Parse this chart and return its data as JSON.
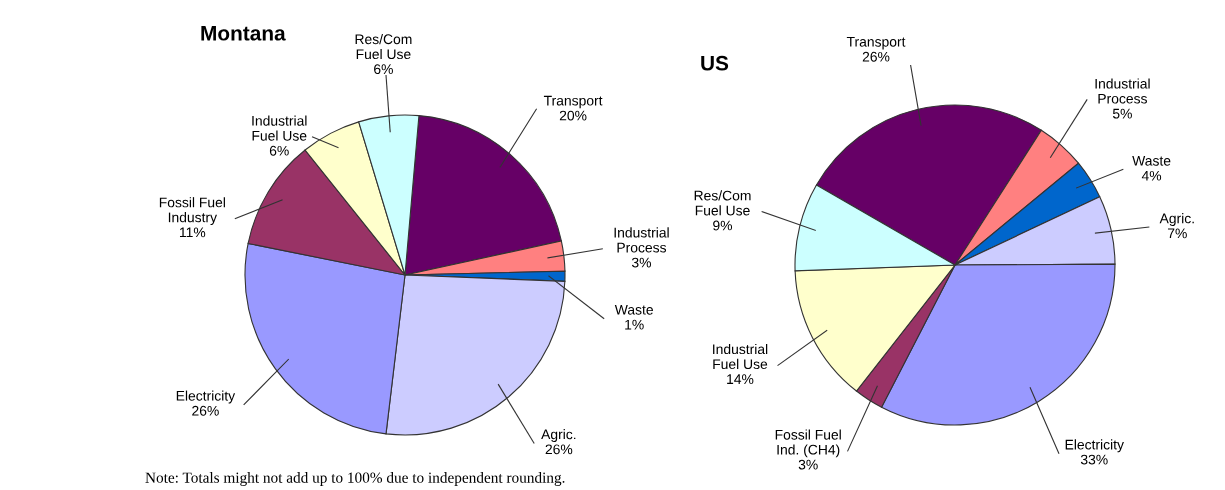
{
  "chart_data": [
    {
      "type": "pie",
      "title": "Montana",
      "categories": [
        "Transport",
        "Industrial\nProcess",
        "Waste",
        "Agric.",
        "Electricity",
        "Fossil Fuel\nIndustry",
        "Industrial\nFuel Use",
        "Res/Com\nFuel Use"
      ],
      "values": [
        20,
        3,
        1,
        26,
        26,
        11,
        6,
        6
      ],
      "value_labels": [
        "20%",
        "3%",
        "1%",
        "26%",
        "26%",
        "11%",
        "6%",
        "6%"
      ],
      "colors": [
        "#660066",
        "#ff8080",
        "#0066cc",
        "#ccccff",
        "#9999ff",
        "#993366",
        "#ffffcc",
        "#ccffff"
      ]
    },
    {
      "type": "pie",
      "title": "US",
      "categories": [
        "Transport",
        "Industrial\nProcess",
        "Waste",
        "Agric.",
        "Electricity",
        "Fossil Fuel\nInd. (CH4)",
        "Industrial\nFuel Use",
        "Res/Com\nFuel Use"
      ],
      "values": [
        26,
        5,
        4,
        7,
        33,
        3,
        14,
        9
      ],
      "value_labels": [
        "26%",
        "5%",
        "4%",
        "7%",
        "33%",
        "3%",
        "14%",
        "9%"
      ],
      "colors": [
        "#660066",
        "#ff8080",
        "#0066cc",
        "#ccccff",
        "#9999ff",
        "#993366",
        "#ffffcc",
        "#ccffff"
      ],
      "annotations": [
        "Note: Totals might not add up to 100% due to independent rounding."
      ]
    }
  ]
}
